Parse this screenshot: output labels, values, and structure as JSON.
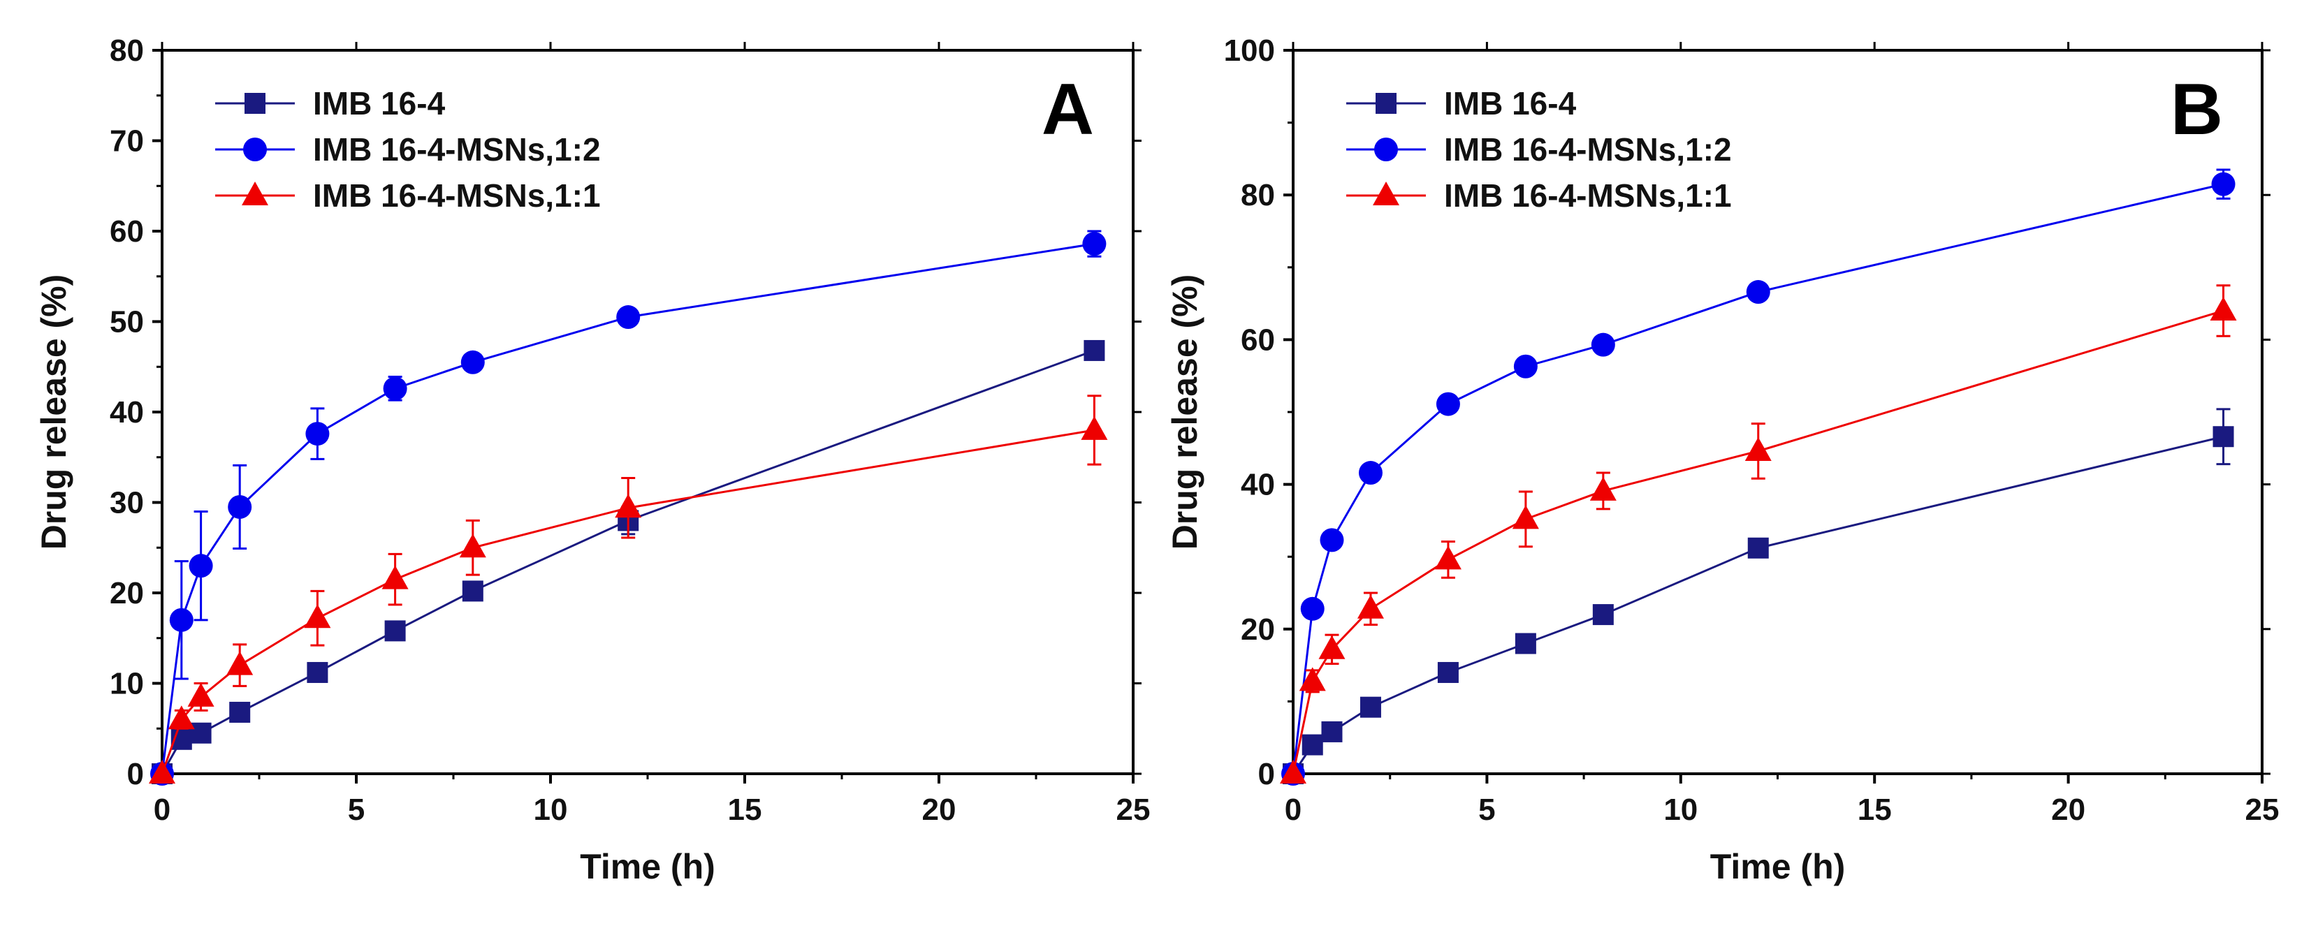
{
  "chart_data": [
    {
      "type": "line",
      "panel_label": "A",
      "xlabel": "Time (h)",
      "ylabel": "Drug release (%)",
      "xlim": [
        0,
        25
      ],
      "ylim": [
        0,
        80
      ],
      "xticks": [
        "0",
        "5",
        "10",
        "15",
        "20",
        "25"
      ],
      "yticks": [
        "0",
        "10",
        "20",
        "30",
        "40",
        "50",
        "60",
        "70",
        "80"
      ],
      "legend_position": "top-left",
      "x": [
        0,
        0.5,
        1,
        2,
        4,
        6,
        8,
        12,
        24
      ],
      "series": [
        {
          "name": "IMB 16-4",
          "color": "#1a1a80",
          "marker": "square",
          "values": [
            0,
            3.8,
            4.5,
            6.8,
            11.2,
            15.8,
            20.2,
            28.0,
            46.8
          ],
          "errors": [
            0,
            0.8,
            0.6,
            0.6,
            0.6,
            0.5,
            0.6,
            1.5,
            0.5
          ]
        },
        {
          "name": "IMB 16-4-MSNs,1:2",
          "color": "#0000ee",
          "marker": "circle",
          "values": [
            0,
            17.0,
            23.0,
            29.5,
            37.6,
            42.6,
            45.5,
            50.5,
            58.6
          ],
          "errors": [
            0,
            6.5,
            6.0,
            4.6,
            2.8,
            1.3,
            0.8,
            0.8,
            1.4
          ]
        },
        {
          "name": "IMB 16-4-MSNs,1:1",
          "color": "#ee0000",
          "marker": "triangle",
          "values": [
            0,
            6.0,
            8.5,
            12.0,
            17.2,
            21.5,
            25.0,
            29.4,
            38.0
          ],
          "errors": [
            0,
            1.0,
            1.5,
            2.3,
            3.0,
            2.8,
            3.0,
            3.3,
            3.8
          ]
        }
      ]
    },
    {
      "type": "line",
      "panel_label": "B",
      "xlabel": "Time (h)",
      "ylabel": "Drug release (%)",
      "xlim": [
        0,
        25
      ],
      "ylim": [
        0,
        100
      ],
      "xticks": [
        "0",
        "5",
        "10",
        "15",
        "20",
        "25"
      ],
      "yticks": [
        "0",
        "20",
        "40",
        "60",
        "80",
        "100"
      ],
      "legend_position": "top-left",
      "x": [
        0,
        0.5,
        1,
        2,
        4,
        6,
        8,
        12,
        24
      ],
      "series": [
        {
          "name": "IMB 16-4",
          "color": "#1a1a80",
          "marker": "square",
          "values": [
            0,
            4.0,
            5.8,
            9.2,
            14.0,
            18.0,
            22.0,
            31.2,
            46.6
          ],
          "errors": [
            0,
            0.5,
            0.5,
            0.5,
            0.5,
            0.6,
            1.0,
            0.8,
            3.8
          ]
        },
        {
          "name": "IMB 16-4-MSNs,1:2",
          "color": "#0000ee",
          "marker": "circle",
          "values": [
            0,
            22.8,
            32.3,
            41.6,
            51.1,
            56.3,
            59.3,
            66.6,
            81.5
          ],
          "errors": [
            0,
            1.0,
            1.0,
            0.8,
            0.8,
            0.8,
            0.8,
            0.8,
            2.0
          ]
        },
        {
          "name": "IMB 16-4-MSNs,1:1",
          "color": "#ee0000",
          "marker": "triangle",
          "values": [
            0,
            12.8,
            17.2,
            22.8,
            29.6,
            35.2,
            39.1,
            44.6,
            64.0
          ],
          "errors": [
            0,
            1.5,
            2.0,
            2.2,
            2.5,
            3.8,
            2.5,
            3.8,
            3.5
          ]
        }
      ]
    }
  ]
}
